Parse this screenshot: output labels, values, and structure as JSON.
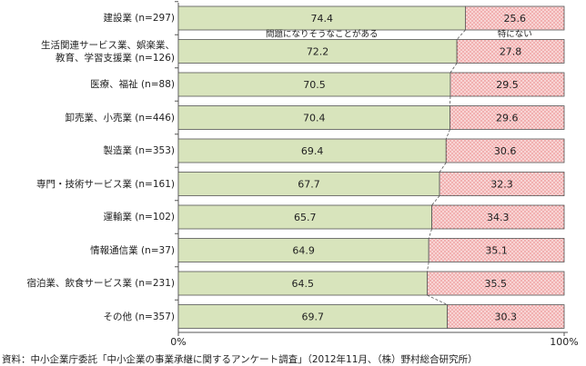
{
  "chart_data": {
    "type": "stacked-bar-horizontal",
    "categories": [
      "建設業 (n=297)",
      "生活関連サービス業、娯楽業、\n教育、学習支援業 (n=126)",
      "医療、福祉 (n=88)",
      "卸売業、小売業 (n=446)",
      "製造業 (n=353)",
      "専門・技術サービス業 (n=161)",
      "運輸業 (n=102)",
      "情報通信業 (n=37)",
      "宿泊業、飲食サービス業 (n=231)",
      "その他 (n=357)"
    ],
    "series": [
      {
        "name": "問題になりそうなことがある",
        "color": "#d8e4bc",
        "values": [
          74.4,
          72.2,
          70.5,
          70.4,
          69.4,
          67.7,
          65.7,
          64.9,
          64.5,
          69.7
        ]
      },
      {
        "name": "特にない",
        "color": "#f8d4d4",
        "values": [
          25.6,
          27.8,
          29.5,
          29.6,
          30.6,
          32.3,
          34.3,
          35.1,
          35.5,
          30.3
        ]
      }
    ],
    "xlim": [
      0,
      100
    ],
    "xticks": [
      {
        "value": 0,
        "label": "0%"
      },
      {
        "value": 100,
        "label": "100%"
      }
    ],
    "source": "資料：中小企業庁委託「中小企業の事業承継に関するアンケート調査」（2012年11月、（株）野村総合研究所）"
  }
}
